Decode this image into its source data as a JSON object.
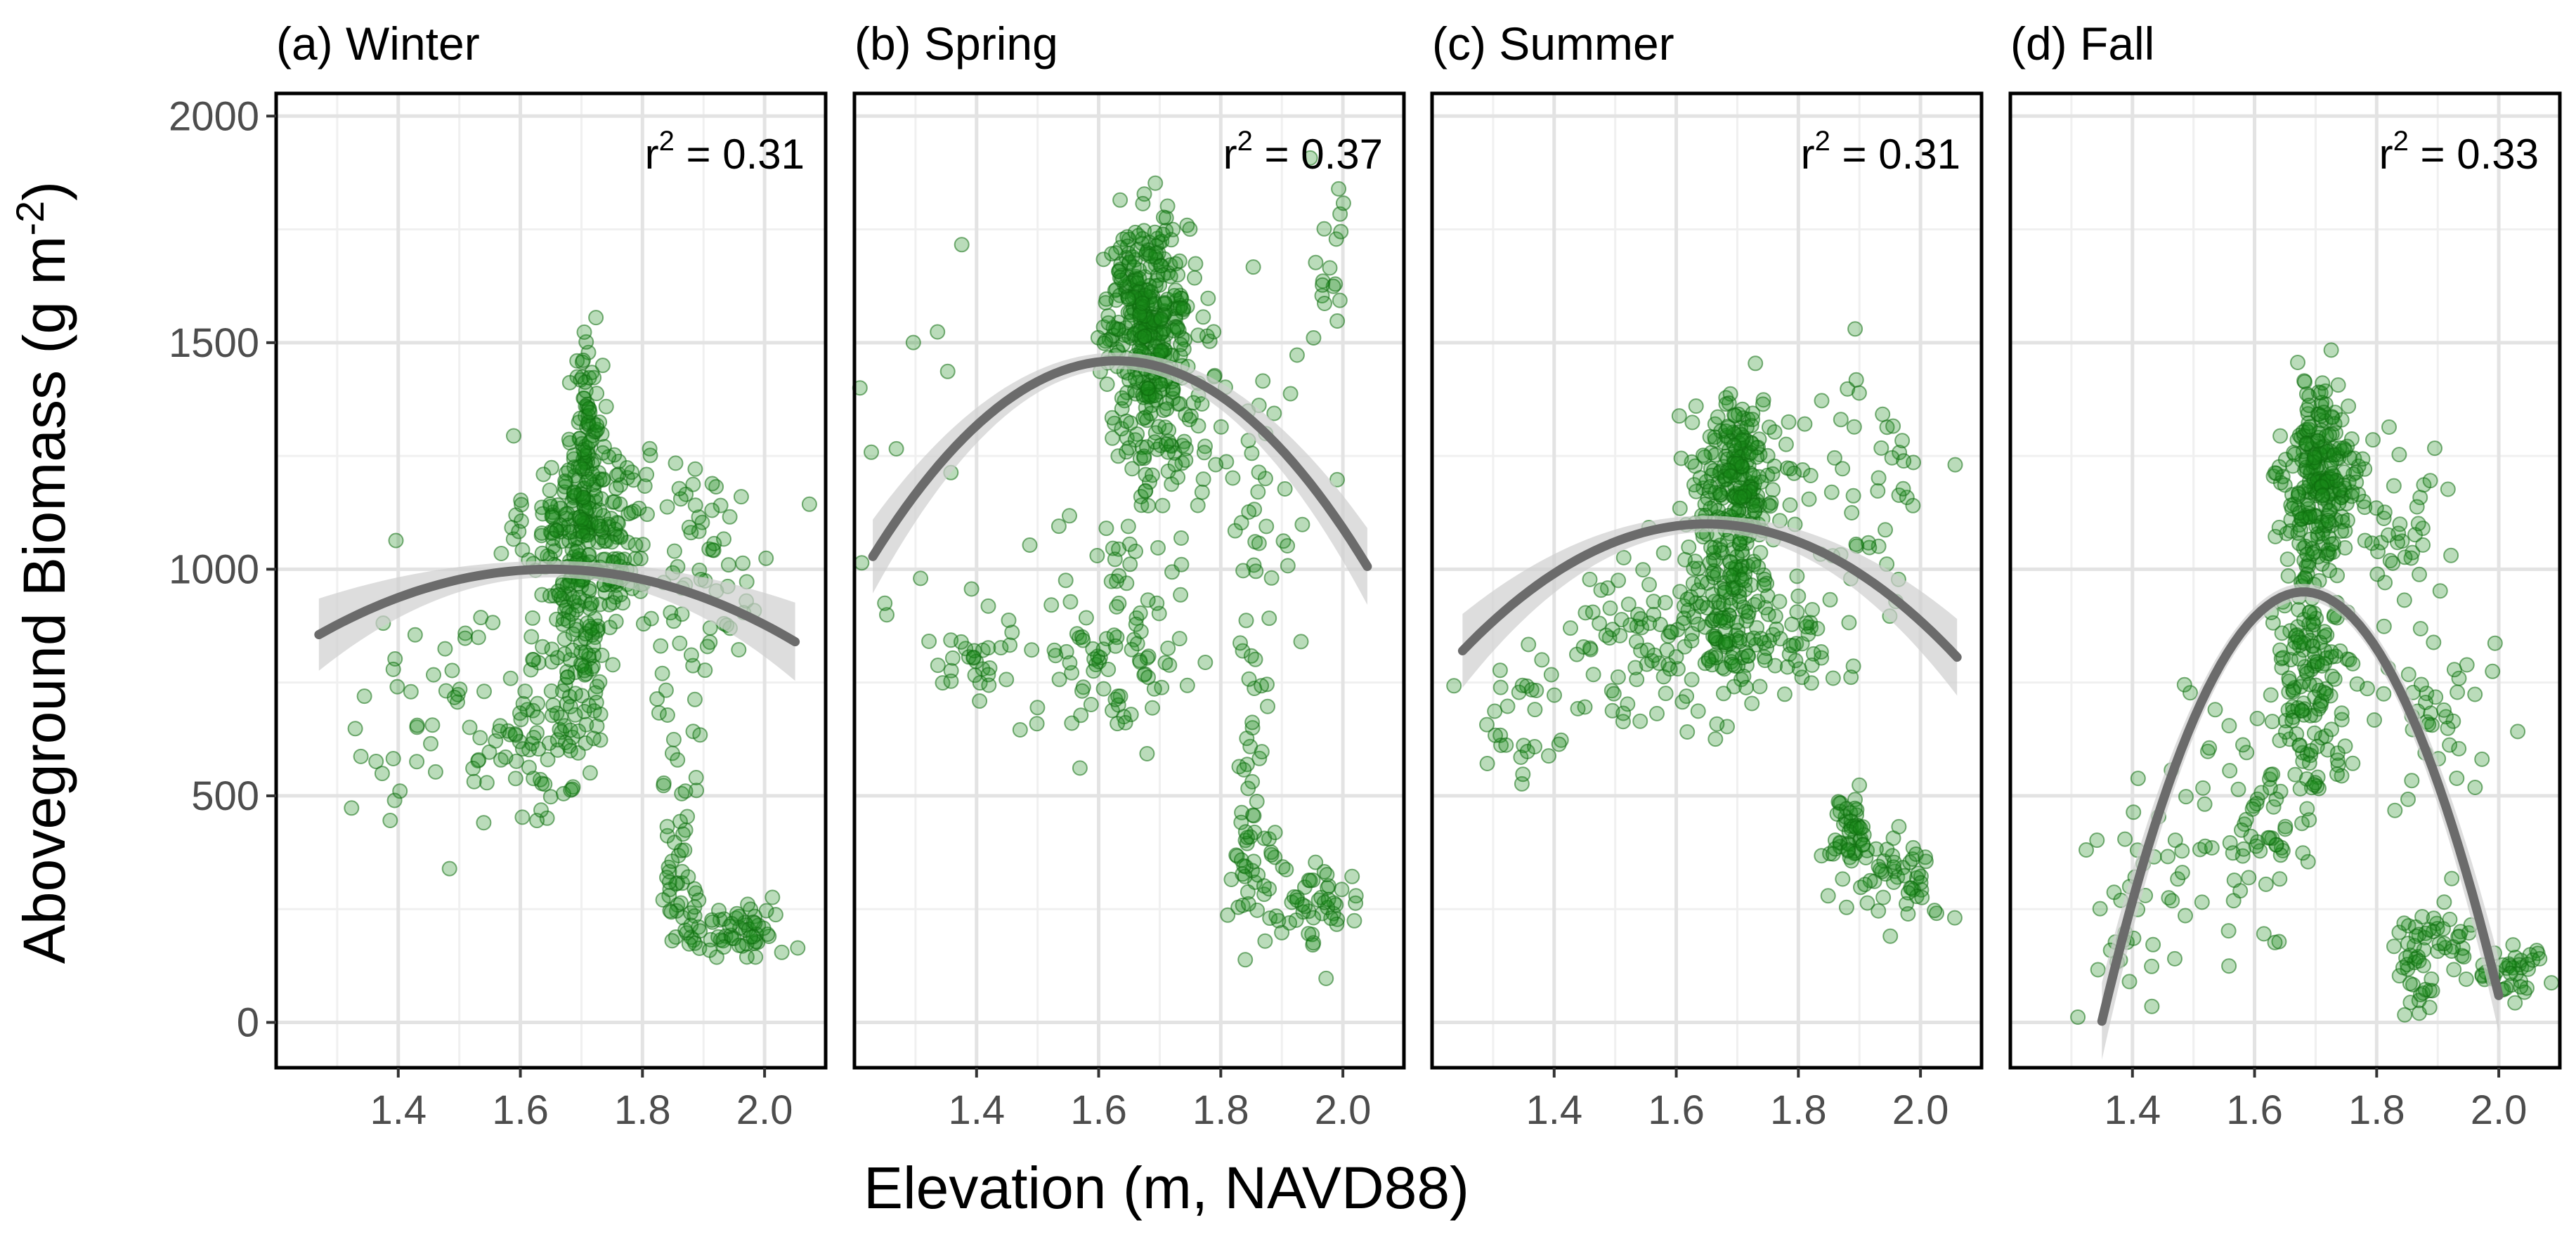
{
  "chart_data": {
    "type": "scatter",
    "xlabel": "Elevation (m, NAVD88)",
    "ylabel": "Aboveground Biomass  (g m",
    "ylabel_unit_exponent": "-2",
    "ylabel_close": ")",
    "xlim": [
      1.2,
      2.1
    ],
    "ylim": [
      -100,
      2050
    ],
    "x_ticks": [
      1.4,
      1.6,
      1.8,
      2.0
    ],
    "x_tick_labels": [
      "1.4",
      "1.6",
      "1.8",
      "2.0"
    ],
    "y_ticks": [
      0,
      500,
      1000,
      1500,
      2000
    ],
    "y_tick_labels": [
      "0",
      "500",
      "1000",
      "1500",
      "2000"
    ],
    "point_color": "#1a8a1a",
    "fit_color": "#6b6b6b",
    "band_color": "#cfcfcf",
    "panels": [
      {
        "title": "(a) Winter",
        "r2_label": "r",
        "r2_exponent": "2",
        "r2_value": "= 0.31",
        "fit": {
          "a": -1000,
          "x0": 1.65,
          "ymax": 1000,
          "x_from": 1.27,
          "x_to": 2.05
        },
        "clusters": [
          {
            "cx": 1.71,
            "cy": 1080,
            "sx": 0.05,
            "sy": 110,
            "n": 260
          },
          {
            "cx": 1.71,
            "cy": 1320,
            "sx": 0.012,
            "sy": 120,
            "n": 70
          },
          {
            "cx": 1.7,
            "cy": 830,
            "sx": 0.025,
            "sy": 130,
            "n": 90
          },
          {
            "cx": 1.62,
            "cy": 650,
            "sx": 0.06,
            "sy": 110,
            "n": 70
          },
          {
            "cx": 1.45,
            "cy": 640,
            "sx": 0.08,
            "sy": 140,
            "n": 40
          },
          {
            "cx": 1.9,
            "cy": 1000,
            "sx": 0.06,
            "sy": 140,
            "n": 60
          },
          {
            "cx": 1.86,
            "cy": 320,
            "sx": 0.015,
            "sy": 70,
            "n": 35
          },
          {
            "cx": 1.95,
            "cy": 200,
            "sx": 0.045,
            "sy": 30,
            "n": 60
          },
          {
            "cx": 1.86,
            "cy": 600,
            "sx": 0.02,
            "sy": 180,
            "n": 20
          }
        ]
      },
      {
        "title": "(b) Spring",
        "r2_label": "r",
        "r2_exponent": "2",
        "r2_value": "= 0.37",
        "fit": {
          "a": -2700,
          "x0": 1.63,
          "ymax": 1460,
          "x_from": 1.23,
          "x_to": 2.04
        },
        "clusters": [
          {
            "cx": 1.68,
            "cy": 1570,
            "sx": 0.035,
            "sy": 100,
            "n": 300
          },
          {
            "cx": 1.7,
            "cy": 1320,
            "sx": 0.035,
            "sy": 120,
            "n": 120
          },
          {
            "cx": 1.62,
            "cy": 850,
            "sx": 0.06,
            "sy": 120,
            "n": 90
          },
          {
            "cx": 1.4,
            "cy": 800,
            "sx": 0.04,
            "sy": 60,
            "n": 30
          },
          {
            "cx": 1.3,
            "cy": 1300,
            "sx": 0.05,
            "sy": 250,
            "n": 12
          },
          {
            "cx": 1.86,
            "cy": 1200,
            "sx": 0.05,
            "sy": 200,
            "n": 40
          },
          {
            "cx": 1.98,
            "cy": 1650,
            "sx": 0.02,
            "sy": 120,
            "n": 18
          },
          {
            "cx": 1.85,
            "cy": 350,
            "sx": 0.02,
            "sy": 70,
            "n": 40
          },
          {
            "cx": 1.95,
            "cy": 250,
            "sx": 0.04,
            "sy": 50,
            "n": 50
          },
          {
            "cx": 1.85,
            "cy": 750,
            "sx": 0.02,
            "sy": 150,
            "n": 20
          }
        ]
      },
      {
        "title": "(c) Summer",
        "r2_label": "r",
        "r2_exponent": "2",
        "r2_value": "= 0.31",
        "fit": {
          "a": -1750,
          "x0": 1.65,
          "ymax": 1100,
          "x_from": 1.25,
          "x_to": 2.06
        },
        "clusters": [
          {
            "cx": 1.7,
            "cy": 1180,
            "sx": 0.035,
            "sy": 100,
            "n": 260
          },
          {
            "cx": 1.68,
            "cy": 900,
            "sx": 0.04,
            "sy": 110,
            "n": 120
          },
          {
            "cx": 1.55,
            "cy": 800,
            "sx": 0.07,
            "sy": 110,
            "n": 80
          },
          {
            "cx": 1.35,
            "cy": 680,
            "sx": 0.05,
            "sy": 90,
            "n": 30
          },
          {
            "cx": 1.9,
            "cy": 1150,
            "sx": 0.06,
            "sy": 180,
            "n": 50
          },
          {
            "cx": 1.78,
            "cy": 820,
            "sx": 0.04,
            "sy": 50,
            "n": 40
          },
          {
            "cx": 1.88,
            "cy": 420,
            "sx": 0.02,
            "sy": 40,
            "n": 50
          },
          {
            "cx": 1.97,
            "cy": 320,
            "sx": 0.04,
            "sy": 40,
            "n": 50
          }
        ]
      },
      {
        "title": "(d) Fall",
        "r2_label": "r",
        "r2_exponent": "2",
        "r2_value": "= 0.33",
        "fit": {
          "a": -8700,
          "x0": 1.68,
          "ymax": 950,
          "x_from": 1.35,
          "x_to": 2.0
        },
        "clusters": [
          {
            "cx": 1.71,
            "cy": 1200,
            "sx": 0.03,
            "sy": 100,
            "n": 240
          },
          {
            "cx": 1.69,
            "cy": 800,
            "sx": 0.03,
            "sy": 150,
            "n": 160
          },
          {
            "cx": 1.6,
            "cy": 450,
            "sx": 0.06,
            "sy": 150,
            "n": 80
          },
          {
            "cx": 1.42,
            "cy": 250,
            "sx": 0.05,
            "sy": 150,
            "n": 35
          },
          {
            "cx": 1.82,
            "cy": 1100,
            "sx": 0.04,
            "sy": 100,
            "n": 40
          },
          {
            "cx": 1.9,
            "cy": 700,
            "sx": 0.05,
            "sy": 120,
            "n": 40
          },
          {
            "cx": 1.86,
            "cy": 120,
            "sx": 0.015,
            "sy": 80,
            "n": 40
          },
          {
            "cx": 1.92,
            "cy": 180,
            "sx": 0.02,
            "sy": 50,
            "n": 25
          },
          {
            "cx": 2.02,
            "cy": 120,
            "sx": 0.035,
            "sy": 30,
            "n": 40
          }
        ]
      }
    ]
  }
}
